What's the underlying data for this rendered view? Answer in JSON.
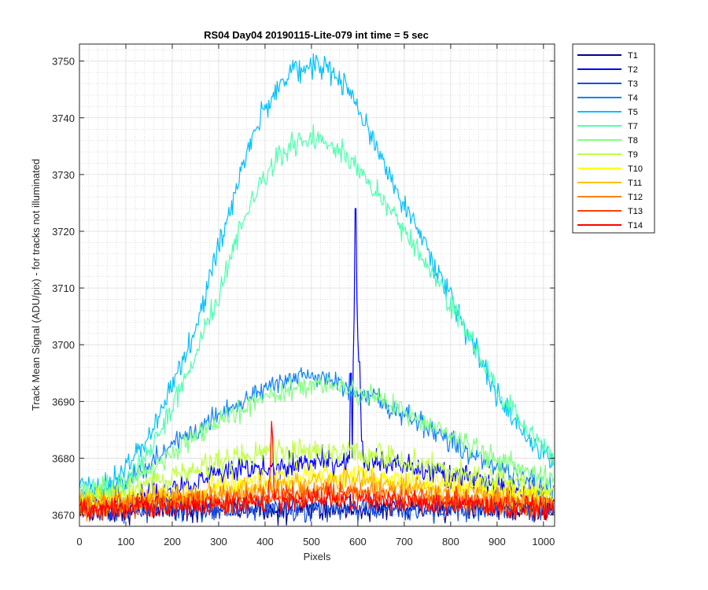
{
  "chart_data": {
    "type": "line",
    "title": "RS04 Day04 20190115-Lite-079 int time = 5 sec",
    "xlabel": "Pixels",
    "ylabel": "Track Mean Signal (ADU/pix) - for tracks not illuminated",
    "xlim": [
      0,
      1024
    ],
    "ylim": [
      3668,
      3753
    ],
    "xticks": [
      0,
      100,
      200,
      300,
      400,
      500,
      600,
      700,
      800,
      900,
      1000
    ],
    "yticks": [
      3670,
      3680,
      3690,
      3700,
      3710,
      3720,
      3730,
      3740,
      3750
    ],
    "grid": "major and minor",
    "legend_position": "outside-top-right",
    "series": [
      {
        "name": "T1",
        "color": "#00008f",
        "profile": [
          [
            0,
            3671
          ],
          [
            1024,
            3671
          ]
        ],
        "noise": 1.5
      },
      {
        "name": "T2",
        "color": "#0000ff",
        "profile": [
          [
            0,
            3671
          ],
          [
            100,
            3672.5
          ],
          [
            300,
            3677
          ],
          [
            500,
            3679.5
          ],
          [
            600,
            3679.5
          ],
          [
            800,
            3677
          ],
          [
            1024,
            3673
          ]
        ],
        "noise": 1.6,
        "spikes": [
          [
            585,
            3695
          ],
          [
            590,
            3697
          ],
          [
            592,
            3705
          ],
          [
            595,
            3724
          ],
          [
            598,
            3708
          ],
          [
            600,
            3701
          ],
          [
            603,
            3697
          ],
          [
            606,
            3690
          ],
          [
            609,
            3683
          ]
        ]
      },
      {
        "name": "T3",
        "color": "#0f4fe3",
        "profile": [
          [
            0,
            3671
          ],
          [
            1024,
            3671
          ]
        ],
        "noise": 1.5
      },
      {
        "name": "T4",
        "color": "#1080ff",
        "profile": [
          [
            0,
            3673
          ],
          [
            100,
            3676
          ],
          [
            200,
            3682
          ],
          [
            300,
            3688
          ],
          [
            400,
            3692.5
          ],
          [
            500,
            3694.5
          ],
          [
            600,
            3692
          ],
          [
            700,
            3688
          ],
          [
            800,
            3683
          ],
          [
            900,
            3678
          ],
          [
            1024,
            3674
          ]
        ],
        "noise": 1.5
      },
      {
        "name": "T5",
        "color": "#00c0ff",
        "profile": [
          [
            0,
            3675
          ],
          [
            50,
            3675
          ],
          [
            100,
            3678
          ],
          [
            150,
            3684
          ],
          [
            200,
            3693
          ],
          [
            250,
            3703
          ],
          [
            300,
            3717
          ],
          [
            350,
            3731
          ],
          [
            400,
            3742
          ],
          [
            450,
            3748
          ],
          [
            520,
            3749.5
          ],
          [
            580,
            3745
          ],
          [
            650,
            3733
          ],
          [
            700,
            3725
          ],
          [
            750,
            3717
          ],
          [
            800,
            3708
          ],
          [
            850,
            3700
          ],
          [
            900,
            3691
          ],
          [
            950,
            3685
          ],
          [
            1000,
            3681
          ],
          [
            1024,
            3679
          ]
        ],
        "noise": 1.6
      },
      {
        "name": "T7",
        "color": "#50ffb0",
        "profile": [
          [
            0,
            3674
          ],
          [
            50,
            3674
          ],
          [
            100,
            3676
          ],
          [
            150,
            3681
          ],
          [
            200,
            3689
          ],
          [
            250,
            3698
          ],
          [
            300,
            3709
          ],
          [
            350,
            3721
          ],
          [
            400,
            3730
          ],
          [
            450,
            3735
          ],
          [
            520,
            3737
          ],
          [
            580,
            3733
          ],
          [
            650,
            3726
          ],
          [
            700,
            3720
          ],
          [
            750,
            3714
          ],
          [
            800,
            3707
          ],
          [
            850,
            3700
          ],
          [
            900,
            3692
          ],
          [
            950,
            3686
          ],
          [
            1000,
            3682
          ],
          [
            1024,
            3680
          ]
        ],
        "noise": 1.5
      },
      {
        "name": "T8",
        "color": "#80ff80",
        "profile": [
          [
            0,
            3673
          ],
          [
            100,
            3675.5
          ],
          [
            200,
            3681
          ],
          [
            300,
            3686.5
          ],
          [
            400,
            3690.5
          ],
          [
            500,
            3693
          ],
          [
            550,
            3693
          ],
          [
            650,
            3690.5
          ],
          [
            700,
            3688
          ],
          [
            800,
            3684
          ],
          [
            900,
            3680
          ],
          [
            1024,
            3676
          ]
        ],
        "noise": 1.4
      },
      {
        "name": "T9",
        "color": "#c0ff40",
        "profile": [
          [
            0,
            3672
          ],
          [
            100,
            3674
          ],
          [
            200,
            3677
          ],
          [
            300,
            3679.5
          ],
          [
            400,
            3681
          ],
          [
            500,
            3681.5
          ],
          [
            600,
            3681
          ],
          [
            700,
            3679.5
          ],
          [
            800,
            3678
          ],
          [
            900,
            3676
          ],
          [
            1024,
            3674
          ]
        ],
        "noise": 1.5
      },
      {
        "name": "T10",
        "color": "#ffff00",
        "profile": [
          [
            0,
            3672
          ],
          [
            200,
            3673.5
          ],
          [
            400,
            3676
          ],
          [
            500,
            3677
          ],
          [
            600,
            3677
          ],
          [
            800,
            3675
          ],
          [
            1024,
            3673
          ]
        ],
        "noise": 1.5
      },
      {
        "name": "T11",
        "color": "#ffbf00",
        "profile": [
          [
            0,
            3672
          ],
          [
            200,
            3673
          ],
          [
            400,
            3675
          ],
          [
            500,
            3676
          ],
          [
            600,
            3676
          ],
          [
            800,
            3674
          ],
          [
            1024,
            3672.5
          ]
        ],
        "noise": 1.5
      },
      {
        "name": "T12",
        "color": "#ff8000",
        "profile": [
          [
            0,
            3671.5
          ],
          [
            200,
            3672.5
          ],
          [
            400,
            3674
          ],
          [
            500,
            3674.5
          ],
          [
            600,
            3674.5
          ],
          [
            800,
            3673
          ],
          [
            1024,
            3672
          ]
        ],
        "noise": 1.5
      },
      {
        "name": "T13",
        "color": "#ff4000",
        "profile": [
          [
            0,
            3671
          ],
          [
            200,
            3672
          ],
          [
            400,
            3673
          ],
          [
            500,
            3673.5
          ],
          [
            600,
            3673.5
          ],
          [
            800,
            3672.5
          ],
          [
            1024,
            3671.5
          ]
        ],
        "noise": 1.4
      },
      {
        "name": "T14",
        "color": "#ff0000",
        "profile": [
          [
            0,
            3671
          ],
          [
            200,
            3671.5
          ],
          [
            400,
            3672
          ],
          [
            500,
            3672.5
          ],
          [
            600,
            3672.5
          ],
          [
            800,
            3672
          ],
          [
            1024,
            3671
          ]
        ],
        "noise": 1.3,
        "spikes": [
          [
            409,
            3676
          ],
          [
            411,
            3680
          ],
          [
            413,
            3686.5
          ],
          [
            415,
            3684
          ],
          [
            417,
            3678
          ]
        ]
      }
    ]
  }
}
